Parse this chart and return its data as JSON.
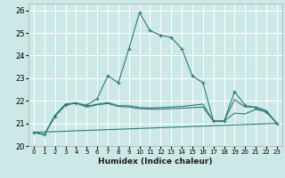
{
  "xlabel": "Humidex (Indice chaleur)",
  "xlim": [
    -0.5,
    23.5
  ],
  "ylim": [
    20.0,
    26.3
  ],
  "yticks": [
    20,
    21,
    22,
    23,
    24,
    25,
    26
  ],
  "xticks": [
    0,
    1,
    2,
    3,
    4,
    5,
    6,
    7,
    8,
    9,
    10,
    11,
    12,
    13,
    14,
    15,
    16,
    17,
    18,
    19,
    20,
    21,
    22,
    23
  ],
  "bg_color": "#cce9e8",
  "grid_color": "#ffffff",
  "line_color": "#2d7a78",
  "lines": [
    {
      "x": [
        0,
        1,
        2,
        3,
        4,
        5,
        6,
        7,
        8,
        9,
        10,
        11,
        12,
        13,
        14,
        15,
        16,
        17,
        18,
        19,
        20,
        21,
        22,
        23
      ],
      "y": [
        20.6,
        20.5,
        21.3,
        21.8,
        21.9,
        21.8,
        22.1,
        23.1,
        22.8,
        24.3,
        25.9,
        25.1,
        24.9,
        24.8,
        24.3,
        23.1,
        22.8,
        21.1,
        21.1,
        22.4,
        21.8,
        21.7,
        21.5,
        21.0
      ],
      "marker": "+"
    },
    {
      "x": [
        0,
        1,
        2,
        3,
        4,
        5,
        6,
        7,
        8,
        9,
        10,
        11,
        12,
        13,
        14,
        15,
        16,
        17,
        18,
        19,
        20,
        21,
        22,
        23
      ],
      "y": [
        20.6,
        20.5,
        21.35,
        21.85,
        21.9,
        21.72,
        21.82,
        21.88,
        21.75,
        21.72,
        21.65,
        21.63,
        21.63,
        21.65,
        21.67,
        21.7,
        21.72,
        21.1,
        21.1,
        21.45,
        21.42,
        21.62,
        21.52,
        21.0
      ],
      "marker": null
    },
    {
      "x": [
        0,
        1,
        2,
        3,
        4,
        5,
        6,
        7,
        8,
        9,
        10,
        11,
        12,
        13,
        14,
        15,
        16,
        17,
        18,
        19,
        20,
        21,
        22,
        23
      ],
      "y": [
        20.6,
        20.5,
        21.35,
        21.85,
        21.9,
        21.75,
        21.85,
        21.92,
        21.78,
        21.78,
        21.7,
        21.68,
        21.7,
        21.72,
        21.75,
        21.8,
        21.85,
        21.1,
        21.1,
        22.05,
        21.72,
        21.72,
        21.57,
        21.0
      ],
      "marker": null
    },
    {
      "x": [
        0,
        23
      ],
      "y": [
        20.6,
        21.0
      ],
      "marker": null
    }
  ]
}
